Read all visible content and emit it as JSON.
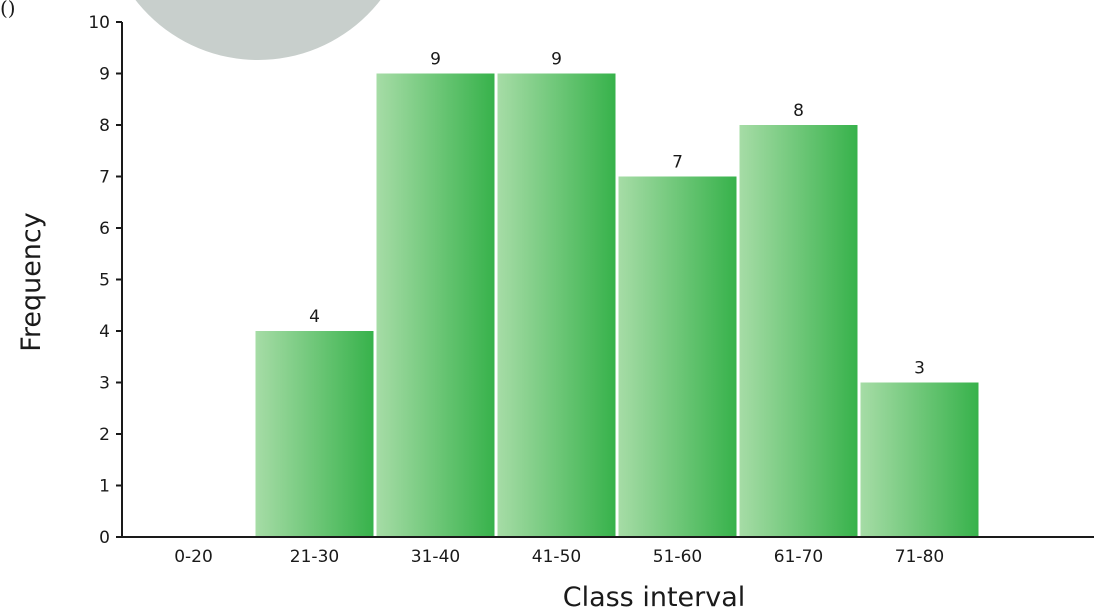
{
  "corner_mark": "()",
  "chart_data": {
    "type": "bar",
    "title": "",
    "xlabel": "Class interval",
    "ylabel": "Frequency",
    "categories": [
      "0-20",
      "21-30",
      "31-40",
      "41-50",
      "51-60",
      "61-70",
      "71-80"
    ],
    "values": [
      0,
      4,
      9,
      9,
      7,
      8,
      3
    ],
    "data_labels": [
      "",
      "4",
      "9",
      "9",
      "7",
      "8",
      "3"
    ],
    "ylim": [
      0,
      10
    ],
    "yticks": [
      0,
      1,
      2,
      3,
      4,
      5,
      6,
      7,
      8,
      9,
      10
    ],
    "grid": false,
    "legend": "none",
    "colors": {
      "bar_light": "#a6dca6",
      "bar_dark": "#37b24b",
      "axis": "#1a1a1a",
      "decor_circle": "#c8cfcc"
    }
  }
}
